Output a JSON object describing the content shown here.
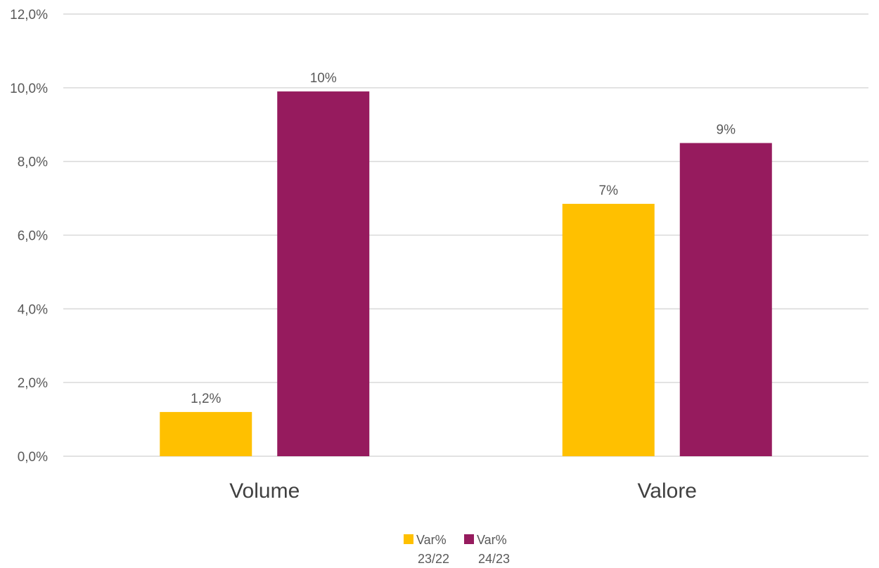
{
  "chart_data": {
    "type": "bar",
    "categories": [
      "Volume",
      "Valore"
    ],
    "series": [
      {
        "name": "Var% 23/22",
        "legend_lines": [
          "Var%",
          "23/22"
        ],
        "values": [
          1.2,
          6.85
        ],
        "labels": [
          "1,2%",
          "7%"
        ],
        "color": "#FFC000"
      },
      {
        "name": "Var% 24/23",
        "legend_lines": [
          "Var%",
          "24/23"
        ],
        "values": [
          9.9,
          8.5
        ],
        "labels": [
          "10%",
          "9%"
        ],
        "color": "#961B5E"
      }
    ],
    "ylim": [
      0,
      12
    ],
    "yticks": [
      "0,0%",
      "2,0%",
      "4,0%",
      "6,0%",
      "8,0%",
      "10,0%",
      "12,0%"
    ],
    "ytick_values": [
      0,
      2,
      4,
      6,
      8,
      10,
      12
    ],
    "title": "",
    "xlabel": "",
    "ylabel": "",
    "grid": true,
    "legend_position": "bottom-center"
  }
}
